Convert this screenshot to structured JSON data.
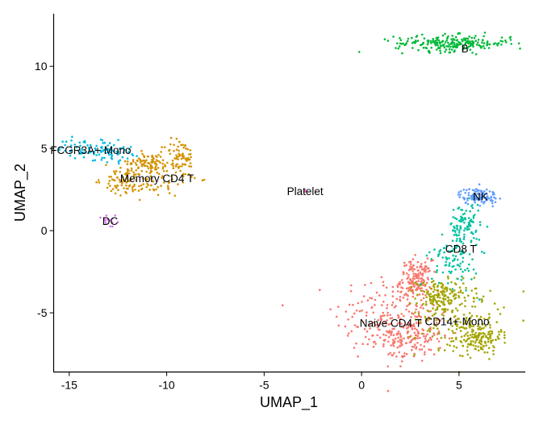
{
  "chart_data": {
    "type": "scatter",
    "title": "",
    "xlabel": "UMAP_1",
    "ylabel": "UMAP_2",
    "xlim": [
      -15.8,
      8.4
    ],
    "ylim": [
      -8.6,
      13.2
    ],
    "xticks": [
      -15,
      -10,
      -5,
      0,
      5
    ],
    "xtick_labels": [
      "-15",
      "-10",
      "-5",
      "0",
      "5"
    ],
    "yticks": [
      -5,
      0,
      5,
      10
    ],
    "ytick_labels": [
      "-5",
      "0",
      "5",
      "10"
    ],
    "grid": false,
    "legend": "none",
    "series": [
      {
        "name": "Naive CD4 T",
        "color": "#F8766D",
        "label_pos": [
          1.5,
          -5.6
        ],
        "n": 480,
        "blobs": [
          {
            "cx": 1.2,
            "cy": -5.2,
            "sx": 1.3,
            "sy": 1.4
          },
          {
            "cx": 2.6,
            "cy": -6.4,
            "sx": 0.8,
            "sy": 0.8
          },
          {
            "cx": 2.8,
            "cy": -3.0,
            "sx": 0.4,
            "sy": 0.6
          }
        ]
      },
      {
        "name": "CD14+ Mono",
        "color": "#A3A500",
        "label_pos": [
          4.9,
          -5.5
        ],
        "n": 420,
        "blobs": [
          {
            "cx": 5.0,
            "cy": -5.3,
            "sx": 1.1,
            "sy": 1.2
          },
          {
            "cx": 4.0,
            "cy": -4.0,
            "sx": 0.6,
            "sy": 0.5
          },
          {
            "cx": 6.0,
            "cy": -6.5,
            "sx": 0.6,
            "sy": 0.5
          }
        ]
      },
      {
        "name": "Memory CD4 T",
        "color": "#D39200",
        "label_pos": [
          -10.5,
          3.2
        ],
        "n": 300,
        "blobs": [
          {
            "cx": -10.6,
            "cy": 3.2,
            "sx": 1.1,
            "sy": 0.6
          },
          {
            "cx": -9.3,
            "cy": 4.4,
            "sx": 0.4,
            "sy": 0.6
          },
          {
            "cx": -12.0,
            "cy": 3.0,
            "sx": 0.6,
            "sy": 0.4
          },
          {
            "cx": -11.0,
            "cy": 4.2,
            "sx": 0.5,
            "sy": 0.3
          }
        ]
      },
      {
        "name": "B",
        "color": "#00BA38",
        "label_pos": [
          5.3,
          11.1
        ],
        "n": 230,
        "blobs": [
          {
            "cx": 4.7,
            "cy": 11.4,
            "sx": 1.5,
            "sy": 0.25
          }
        ]
      },
      {
        "name": "CD8 T",
        "color": "#00C19F",
        "label_pos": [
          5.1,
          -1.1
        ],
        "n": 190,
        "blobs": [
          {
            "cx": 4.8,
            "cy": -1.6,
            "sx": 0.6,
            "sy": 0.9
          },
          {
            "cx": 5.3,
            "cy": 0.3,
            "sx": 0.4,
            "sy": 0.7
          }
        ]
      },
      {
        "name": "FCGR3A+ Mono",
        "color": "#00B9E3",
        "label_pos": [
          -13.9,
          4.9
        ],
        "n": 110,
        "blobs": [
          {
            "cx": -14.2,
            "cy": 5.0,
            "sx": 0.7,
            "sy": 0.3
          },
          {
            "cx": -12.8,
            "cy": 4.8,
            "sx": 0.5,
            "sy": 0.3
          }
        ]
      },
      {
        "name": "NK",
        "color": "#619CFF",
        "label_pos": [
          6.1,
          2.1
        ],
        "n": 110,
        "blobs": [
          {
            "cx": 6.0,
            "cy": 2.1,
            "sx": 0.5,
            "sy": 0.25
          }
        ]
      },
      {
        "name": "DC",
        "color": "#DB72FB",
        "label_pos": [
          -12.9,
          0.6
        ],
        "n": 14,
        "blobs": [
          {
            "cx": -12.9,
            "cy": 0.6,
            "sx": 0.25,
            "sy": 0.3
          }
        ]
      },
      {
        "name": "Platelet",
        "color": "#FF61C3",
        "label_pos": [
          -2.9,
          2.4
        ],
        "n": 3,
        "blobs": [
          {
            "cx": -2.9,
            "cy": 2.4,
            "sx": 0.04,
            "sy": 0.04
          }
        ]
      }
    ]
  }
}
